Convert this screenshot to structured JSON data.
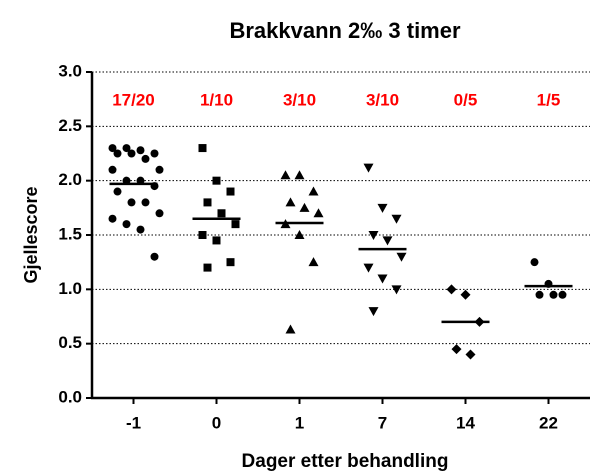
{
  "chart_data": {
    "type": "scatter",
    "title": "Brakkvann 2‰ 3 timer",
    "xlabel": "Dager etter behandling",
    "ylabel": "Gjellescore",
    "categories": [
      "-1",
      "0",
      "1",
      "7",
      "14",
      "22"
    ],
    "annotations": [
      "17/20",
      "1/10",
      "3/10",
      "3/10",
      "0/5",
      "1/5"
    ],
    "annotation_color": "#ff0000",
    "markers": [
      "circle",
      "square",
      "triangle",
      "triangle-down",
      "diamond",
      "circle"
    ],
    "color": "#000000",
    "values": [
      [
        2.3,
        2.3,
        2.28,
        2.25,
        2.25,
        2.25,
        2.2,
        2.1,
        2.1,
        2.0,
        2.0,
        1.95,
        1.9,
        1.8,
        1.8,
        1.7,
        1.65,
        1.6,
        1.55,
        1.3
      ],
      [
        2.3,
        2.0,
        1.9,
        1.8,
        1.7,
        1.6,
        1.5,
        1.45,
        1.25,
        1.2
      ],
      [
        2.05,
        2.05,
        1.9,
        1.8,
        1.75,
        1.7,
        1.6,
        1.5,
        1.25,
        0.63
      ],
      [
        2.12,
        1.75,
        1.65,
        1.5,
        1.45,
        1.3,
        1.2,
        1.1,
        1.0,
        0.8
      ],
      [
        1.0,
        0.95,
        0.7,
        0.45,
        0.4
      ],
      [
        1.25,
        1.05,
        0.95,
        0.95,
        0.95
      ]
    ],
    "means": [
      1.97,
      1.65,
      1.61,
      1.37,
      0.7,
      1.03
    ],
    "ylim": [
      0,
      3
    ],
    "yticks": [
      {
        "value": 0,
        "label": "0.0"
      },
      {
        "value": 0.5,
        "label": "0.5"
      },
      {
        "value": 1,
        "label": "1.0"
      },
      {
        "value": 1.5,
        "label": "1.5"
      },
      {
        "value": 2,
        "label": "2.0"
      },
      {
        "value": 2.5,
        "label": "2.5"
      },
      {
        "value": 3,
        "label": "3.0"
      }
    ],
    "grid": true
  }
}
